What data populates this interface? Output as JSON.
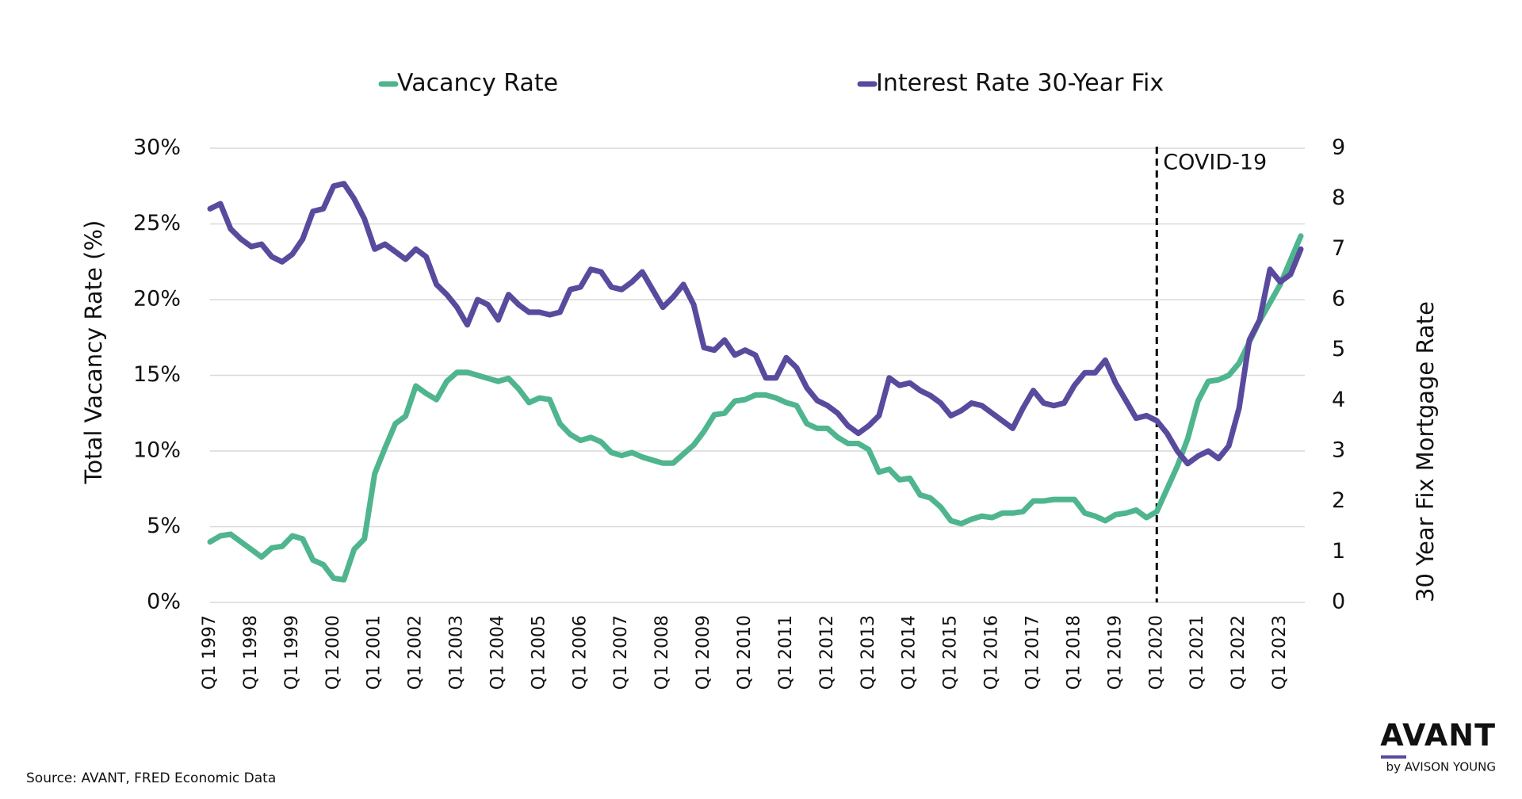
{
  "chart_data": {
    "type": "line",
    "legend": "top",
    "grid": true,
    "y_label": "Total Vacancy Rate (%)",
    "y2_label": "30 Year Fix Mortgage Rate",
    "source": "Source: AVANT, FRED Economic Data",
    "logo": {
      "name": "AVANT",
      "sub": "by AVISON YOUNG"
    },
    "annotations": [
      {
        "text": "COVID-19",
        "x": "Q1 2020"
      }
    ],
    "categories": [
      "Q1 1997",
      null,
      null,
      null,
      "Q1 1998",
      null,
      null,
      null,
      "Q1 1999",
      null,
      null,
      null,
      "Q1 2000",
      null,
      null,
      null,
      "Q1 2001",
      null,
      null,
      null,
      "Q1 2002",
      null,
      null,
      null,
      "Q1 2003",
      null,
      null,
      null,
      "Q1 2004",
      null,
      null,
      null,
      "Q1 2005",
      null,
      null,
      null,
      "Q1 2006",
      null,
      null,
      null,
      "Q1 2007",
      null,
      null,
      null,
      "Q1 2008",
      null,
      null,
      null,
      "Q1 2009",
      null,
      null,
      null,
      "Q1 2010",
      null,
      null,
      null,
      "Q1 2011",
      null,
      null,
      null,
      "Q1 2012",
      null,
      null,
      null,
      "Q1 2013",
      null,
      null,
      null,
      "Q1 2014",
      null,
      null,
      null,
      "Q1 2015",
      null,
      null,
      null,
      "Q1 2016",
      null,
      null,
      null,
      "Q1 2017",
      null,
      null,
      null,
      "Q1 2018",
      null,
      null,
      null,
      "Q1 2019",
      null,
      null,
      null,
      "Q1 2020",
      null,
      null,
      null,
      "Q1 2021",
      null,
      null,
      null,
      "Q1 2022",
      null,
      null,
      null,
      "Q1 2023",
      null,
      null
    ],
    "ylim": [
      0,
      30
    ],
    "yticks": [
      {
        "value": 0,
        "label": "0%"
      },
      {
        "value": 5,
        "label": "5%"
      },
      {
        "value": 10,
        "label": "10%"
      },
      {
        "value": 15,
        "label": "15%"
      },
      {
        "value": 20,
        "label": "20%"
      },
      {
        "value": 25,
        "label": "25%"
      },
      {
        "value": 30,
        "label": "30%"
      }
    ],
    "y2lim": [
      0,
      9
    ],
    "y2ticks": [
      0,
      1,
      2,
      3,
      4,
      5,
      6,
      7,
      8,
      9
    ],
    "series": [
      {
        "name": "Vacancy Rate",
        "color": "#4fb58e",
        "axis": "y",
        "values": [
          4.0,
          4.4,
          4.5,
          4.0,
          3.5,
          3.0,
          3.6,
          3.7,
          4.4,
          4.2,
          2.8,
          2.5,
          1.6,
          1.5,
          3.5,
          4.2,
          8.5,
          10.2,
          11.8,
          12.3,
          14.3,
          13.8,
          13.4,
          14.6,
          15.2,
          15.2,
          15.0,
          14.8,
          14.6,
          14.8,
          14.1,
          13.2,
          13.5,
          13.4,
          11.8,
          11.1,
          10.7,
          10.9,
          10.6,
          9.9,
          9.7,
          9.9,
          9.6,
          9.4,
          9.2,
          9.2,
          9.8,
          10.4,
          11.3,
          12.4,
          12.5,
          13.3,
          13.4,
          13.7,
          13.7,
          13.5,
          13.2,
          13.0,
          11.8,
          11.5,
          11.5,
          10.9,
          10.5,
          10.5,
          10.1,
          8.6,
          8.8,
          8.1,
          8.2,
          7.1,
          6.9,
          6.3,
          5.4,
          5.2,
          5.5,
          5.7,
          5.6,
          5.9,
          5.9,
          6.0,
          6.7,
          6.7,
          6.8,
          6.8,
          6.8,
          5.9,
          5.7,
          5.4,
          5.8,
          5.9,
          6.1,
          5.6,
          6.0,
          7.5,
          9.0,
          10.8,
          13.3,
          14.6,
          14.7,
          15.0,
          15.8,
          17.2,
          18.6,
          19.8,
          21.0,
          22.6,
          24.2
        ]
      },
      {
        "name": "Interest Rate 30-Year Fix",
        "color": "#5a4a9e",
        "axis": "y2",
        "values": [
          7.8,
          7.9,
          7.4,
          7.2,
          7.05,
          7.1,
          6.85,
          6.75,
          6.9,
          7.2,
          7.75,
          7.8,
          8.25,
          8.3,
          8.0,
          7.6,
          7.0,
          7.1,
          6.95,
          6.8,
          7.0,
          6.85,
          6.3,
          6.1,
          5.85,
          5.5,
          6.0,
          5.9,
          5.6,
          6.1,
          5.9,
          5.75,
          5.75,
          5.7,
          5.75,
          6.2,
          6.25,
          6.6,
          6.55,
          6.25,
          6.2,
          6.35,
          6.55,
          6.2,
          5.85,
          6.05,
          6.3,
          5.9,
          5.05,
          5.0,
          5.2,
          4.9,
          5.0,
          4.9,
          4.45,
          4.45,
          4.85,
          4.65,
          4.25,
          4.0,
          3.9,
          3.75,
          3.5,
          3.35,
          3.5,
          3.7,
          4.45,
          4.3,
          4.35,
          4.2,
          4.1,
          3.95,
          3.7,
          3.8,
          3.95,
          3.9,
          3.75,
          3.6,
          3.45,
          3.85,
          4.2,
          3.95,
          3.9,
          3.95,
          4.3,
          4.55,
          4.55,
          4.8,
          4.35,
          4.0,
          3.65,
          3.7,
          3.6,
          3.35,
          3.0,
          2.75,
          2.9,
          3.0,
          2.85,
          3.1,
          3.85,
          5.2,
          5.6,
          6.6,
          6.35,
          6.5,
          7.0
        ]
      }
    ]
  }
}
